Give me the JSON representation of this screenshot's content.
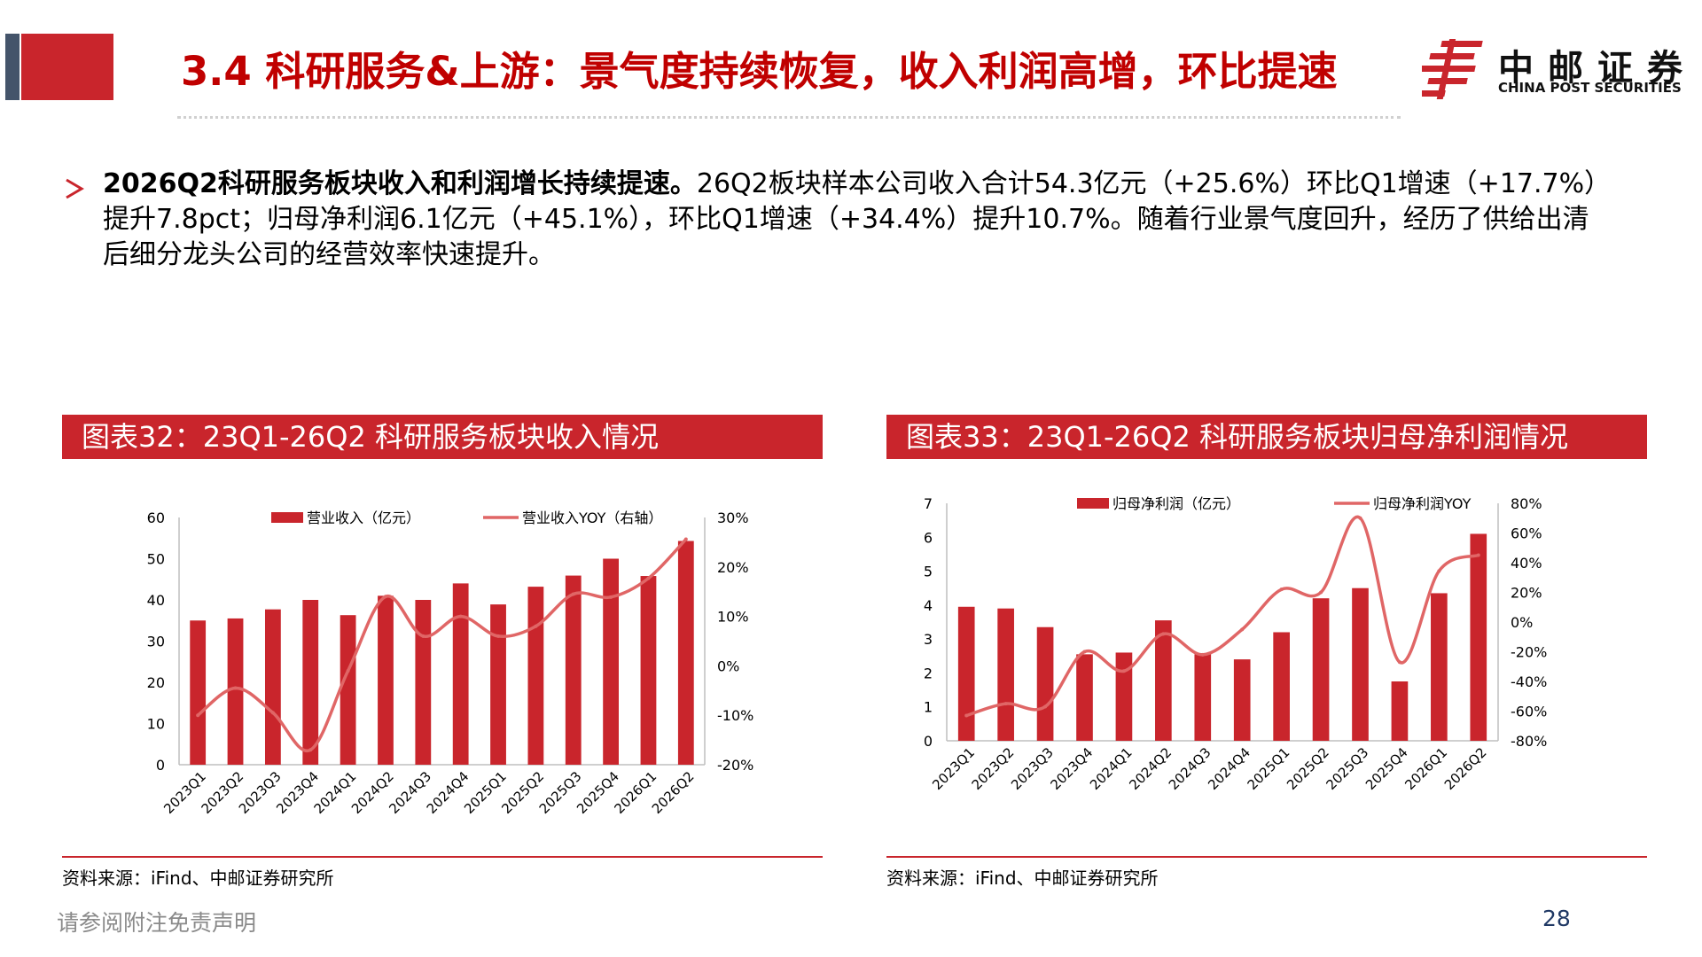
{
  "header": {
    "title": "3.4 科研服务&上游：景气度持续恢复，收入利润高增，环比提速",
    "logo_cn": "中邮证券",
    "logo_en": "CHINA POST SECURITIES",
    "brand_color": "#c9252c"
  },
  "bullet": {
    "bold": "2026Q2科研服务板块收入和利润增长持续提速。",
    "text": "26Q2板块样本公司收入合计54.3亿元（+25.6%）环比Q1增速（+17.7%）提升7.8pct；归母净利润6.1亿元（+45.1%），环比Q1增速（+34.4%）提升10.7%。随着行业景气度回升，经历了供给出清后细分龙头公司的经营效率快速提升。"
  },
  "chart_headers": {
    "left": "图表32：23Q1-26Q2 科研服务板块收入情况",
    "right": "图表33：23Q1-26Q2 科研服务板块归母净利润情况"
  },
  "sources": {
    "left": "资料来源：iFind、中邮证券研究所",
    "right": "资料来源：iFind、中邮证券研究所"
  },
  "footer": {
    "disclaimer": "请参阅附注免责声明",
    "page": "28"
  },
  "chart_data": [
    {
      "type": "bar",
      "categories": [
        "2023Q1",
        "2023Q2",
        "2023Q3",
        "2023Q4",
        "2024Q1",
        "2024Q2",
        "2024Q3",
        "2024Q4",
        "2025Q1",
        "2025Q2",
        "2025Q3",
        "2025Q4",
        "2026Q1",
        "2026Q2"
      ],
      "series": [
        {
          "name": "营业收入（亿元）",
          "type": "bar",
          "axis": "left",
          "values": [
            35.0,
            35.5,
            37.7,
            40.0,
            36.3,
            41.0,
            40.0,
            44.0,
            38.9,
            43.2,
            45.9,
            50.0,
            45.8,
            54.3
          ]
        },
        {
          "name": "营业收入YOY（右轴）",
          "type": "line",
          "axis": "right",
          "values": [
            -10.0,
            -4.5,
            -9.5,
            -17.0,
            -1.0,
            14.0,
            6.0,
            10.0,
            6.0,
            8.0,
            14.5,
            13.9,
            17.7,
            25.6
          ]
        }
      ],
      "y_left": {
        "min": 0,
        "max": 60,
        "ticks": [
          "0",
          "10",
          "20",
          "30",
          "40",
          "50",
          "60"
        ]
      },
      "y_right": {
        "min": -20,
        "max": 30,
        "ticks": [
          "-20%",
          "-10%",
          "0%",
          "10%",
          "20%",
          "30%"
        ]
      },
      "legend": "top",
      "grid": false,
      "colors": {
        "bar": "#c9252c",
        "line": "#e06666"
      }
    },
    {
      "type": "bar",
      "categories": [
        "2023Q1",
        "2023Q2",
        "2023Q3",
        "2023Q4",
        "2024Q1",
        "2024Q2",
        "2024Q3",
        "2024Q4",
        "2025Q1",
        "2025Q2",
        "2025Q3",
        "2025Q4",
        "2026Q1",
        "2026Q2"
      ],
      "series": [
        {
          "name": "归母净利润（亿元）",
          "type": "bar",
          "axis": "left",
          "values": [
            3.95,
            3.9,
            3.35,
            2.55,
            2.6,
            3.55,
            2.55,
            2.4,
            3.2,
            4.2,
            4.5,
            1.75,
            4.35,
            6.1
          ]
        },
        {
          "name": "归母净利润YOY",
          "type": "line",
          "axis": "right",
          "values": [
            -63.0,
            -55.0,
            -57.0,
            -20.0,
            -33.0,
            -8.0,
            -22.0,
            -5.0,
            22.0,
            20.0,
            70.0,
            -27.0,
            34.4,
            45.1
          ]
        }
      ],
      "y_left": {
        "min": 0,
        "max": 7,
        "ticks": [
          "0",
          "1",
          "2",
          "3",
          "4",
          "5",
          "6",
          "7"
        ]
      },
      "y_right": {
        "min": -80,
        "max": 80,
        "ticks": [
          "-80%",
          "-60%",
          "-40%",
          "-20%",
          "0%",
          "20%",
          "40%",
          "60%",
          "80%"
        ]
      },
      "legend": "top",
      "grid": false,
      "colors": {
        "bar": "#c9252c",
        "line": "#e06666"
      }
    }
  ]
}
